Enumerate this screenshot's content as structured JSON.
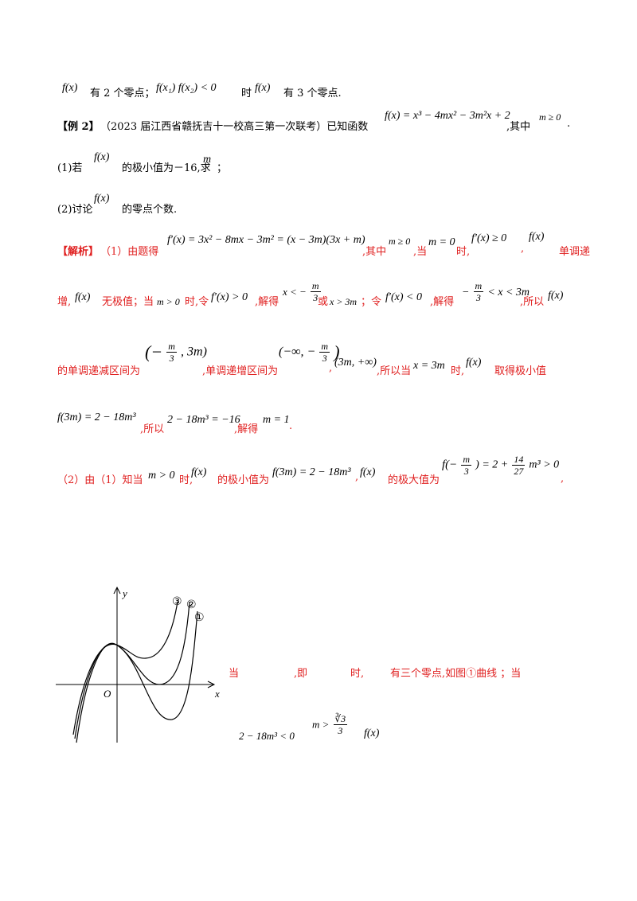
{
  "line1": {
    "f1": "f(x)",
    "t1": "有 2 个零点；",
    "cond": "f(x₁) f(x₂) < 0",
    "t2": "时",
    "f2": "f(x)",
    "t3": "有 3 个零点."
  },
  "example": {
    "tag": "【例 2】",
    "source": "（2023 届江西省赣抚吉十一校高三第一次联考）已知函数",
    "func": "f(x) = x³ − 4mx² − 3m²x + 2",
    "t_where": ",其中",
    "cond": "m ≥ 0",
    "end": "."
  },
  "q1": {
    "pre": "(1)若",
    "f": "f(x)",
    "mid": "的极小值为－16,求",
    "m": "m",
    "end": "；"
  },
  "q2": {
    "pre": "(2)讨论",
    "f": "f(x)",
    "end": "的零点个数."
  },
  "sol": {
    "l1_tag": "【解析】",
    "l1_a": "（1）由题得",
    "l1_deriv": "f′(x) = 3x² − 8mx − 3m² = (x − 3m)(3x + m)",
    "l1_b": ",其中",
    "l1_c": "m ≥ 0",
    "l1_d": ",当",
    "l1_e": "m = 0",
    "l1_f": "时,",
    "l1_g": "f′(x) ≥ 0",
    "l1_h": ",",
    "l1_i": "f(x)",
    "l1_j": "单调递",
    "l2_a": "增,",
    "l2_b": "f(x)",
    "l2_c": "无极值；当",
    "l2_d": "m > 0",
    "l2_e": "时,令",
    "l2_f": "f′(x) > 0",
    "l2_g": ",解得",
    "l2_h1": "x < −",
    "l2_h_num": "m",
    "l2_h_den": "3",
    "l2_i": "或",
    "l2_j": "x > 3m",
    "l2_k": "；令",
    "l2_l": "f′(x) < 0",
    "l2_m": ",解得",
    "l2_n1": "−",
    "l2_n_num": "m",
    "l2_n_den": "3",
    "l2_n2": "< x < 3m",
    "l2_o": ",所以",
    "l2_p": "f(x)",
    "l3_a": "的单调递减区间为",
    "l3_b1": "(−",
    "l3_b_num": "m",
    "l3_b_den": "3",
    "l3_b2": ", 3m)",
    "l3_c": ",单调递增区间为",
    "l3_d1": "(−∞, −",
    "l3_d_num": "m",
    "l3_d_den": "3",
    "l3_d2": ")",
    "l3_e": ",",
    "l3_f": "(3m, +∞)",
    "l3_g": ",所以当",
    "l3_h": "x = 3m",
    "l3_i": "时,",
    "l3_j": "f(x)",
    "l3_k": "取得极小值",
    "l4_a": "f(3m) = 2 − 18m³",
    "l4_b": ",所以",
    "l4_c": "2 − 18m³ = −16",
    "l4_d": ",解得",
    "l4_e": "m = 1",
    "l4_f": ".",
    "l5_a": "（2）由（1）知当",
    "l5_b": "m > 0",
    "l5_c": "时,",
    "l5_d": "f(x)",
    "l5_e": "的极小值为",
    "l5_f": "f(3m) = 2 − 18m³",
    "l5_g": ",",
    "l5_h": "f(x)",
    "l5_i": "的极大值为",
    "l5_j1": "f(−",
    "l5_j_num": "m",
    "l5_j_den": "3",
    "l5_j2": ") = 2 +",
    "l5_j3_num": "14",
    "l5_j3_den": "27",
    "l5_j4": "m³ > 0",
    "l5_k": ","
  },
  "graph": {
    "y_label": "y",
    "x_label": "x",
    "o_label": "O",
    "c1": "①",
    "c2": "②",
    "c3": "③"
  },
  "last": {
    "r1": "当",
    "r2": ",即",
    "r3": "时,",
    "r4": "有三个零点,如图①曲线 ；当",
    "m1": "2 − 18m³ < 0",
    "m2a": "m >",
    "m2_num": "∛3",
    "m2_den": "3",
    "m3": "f(x)"
  }
}
